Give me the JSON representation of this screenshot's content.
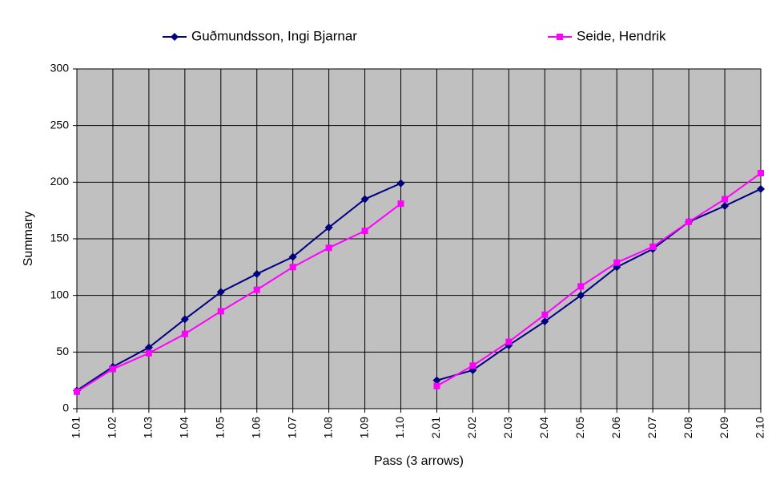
{
  "chart_data": {
    "type": "line",
    "x_label": "Pass (3 arrows)",
    "y_label": "Summary",
    "categories": [
      "1.01",
      "1.02",
      "1.03",
      "1.04",
      "1.05",
      "1.06",
      "1.07",
      "1.08",
      "1.09",
      "1.10",
      "2.01",
      "2.02",
      "2.03",
      "2.04",
      "2.05",
      "2.06",
      "2.07",
      "2.08",
      "2.09",
      "2.10"
    ],
    "series": [
      {
        "name": "Guðmundsson, Ingi Bjarnar",
        "color": "#000080",
        "marker": "diamond",
        "values": [
          16,
          37,
          54,
          79,
          103,
          119,
          134,
          160,
          185,
          199,
          25,
          34,
          56,
          77,
          100,
          125,
          141,
          165,
          179,
          194
        ]
      },
      {
        "name": "Seide, Hendrik",
        "color": "#ff00ff",
        "marker": "square",
        "values": [
          15,
          35,
          49,
          66,
          86,
          105,
          125,
          142,
          157,
          181,
          20,
          38,
          59,
          83,
          108,
          129,
          143,
          165,
          185,
          208
        ]
      }
    ],
    "ylim": [
      0,
      300
    ],
    "yticks": [
      0,
      50,
      100,
      150,
      200,
      250,
      300
    ],
    "grid": true
  }
}
